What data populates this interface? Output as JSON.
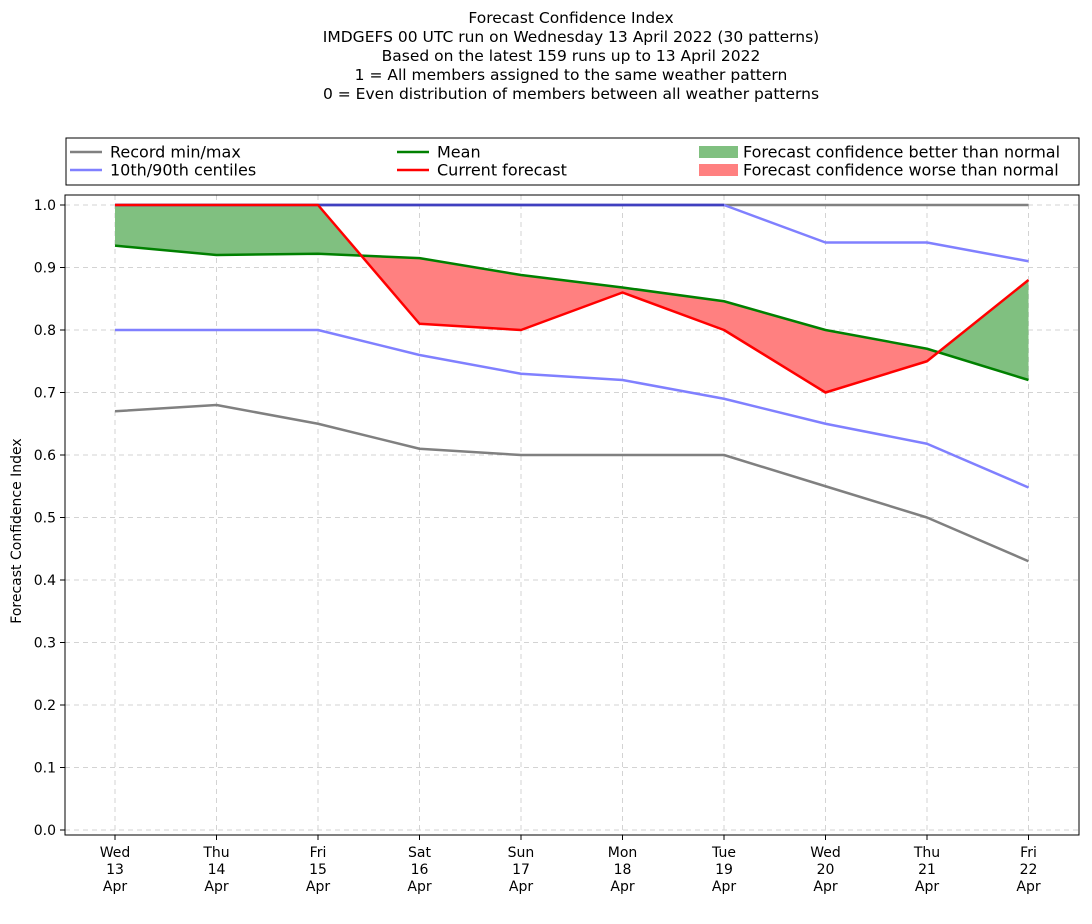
{
  "chart_data": {
    "type": "line",
    "title_lines": [
      "Forecast Confidence Index",
      "IMDGEFS 00 UTC run on Wednesday 13 April 2022 (30 patterns)",
      "Based on the latest 159 runs up to 13 April 2022",
      "1 = All members assigned to the same weather pattern",
      "0 = Even distribution of members between all weather patterns"
    ],
    "ylabel": "Forecast Confidence Index",
    "xlabel": "",
    "ylim": [
      0.0,
      1.0
    ],
    "yticks": [
      "0.0",
      "0.1",
      "0.2",
      "0.3",
      "0.4",
      "0.5",
      "0.6",
      "0.7",
      "0.8",
      "0.9",
      "1.0"
    ],
    "grid": true,
    "legend_placement": "top",
    "categories": [
      [
        "Wed",
        "13",
        "Apr"
      ],
      [
        "Thu",
        "14",
        "Apr"
      ],
      [
        "Fri",
        "15",
        "Apr"
      ],
      [
        "Sat",
        "16",
        "Apr"
      ],
      [
        "Sun",
        "17",
        "Apr"
      ],
      [
        "Mon",
        "18",
        "Apr"
      ],
      [
        "Tue",
        "19",
        "Apr"
      ],
      [
        "Wed",
        "20",
        "Apr"
      ],
      [
        "Thu",
        "21",
        "Apr"
      ],
      [
        "Fri",
        "22",
        "Apr"
      ]
    ],
    "series": {
      "record_min": [
        0.67,
        0.68,
        0.65,
        0.61,
        0.6,
        0.6,
        0.6,
        0.55,
        0.5,
        0.43
      ],
      "record_max": [
        1.0,
        1.0,
        1.0,
        1.0,
        1.0,
        1.0,
        1.0,
        1.0,
        1.0,
        1.0
      ],
      "centile_10": [
        0.8,
        0.8,
        0.8,
        0.76,
        0.73,
        0.72,
        0.69,
        0.65,
        0.618,
        0.548
      ],
      "centile_90": [
        1.0,
        1.0,
        1.0,
        1.0,
        1.0,
        1.0,
        1.0,
        0.94,
        0.94,
        0.91
      ],
      "mean": [
        0.935,
        0.92,
        0.922,
        0.915,
        0.888,
        0.868,
        0.846,
        0.8,
        0.77,
        0.72
      ],
      "current_forecast": [
        1.0,
        1.0,
        1.0,
        0.81,
        0.8,
        0.86,
        0.8,
        0.7,
        0.75,
        0.88
      ]
    },
    "legend": [
      {
        "label": "Record min/max",
        "kind": "line",
        "color": "#808080"
      },
      {
        "label": "Mean",
        "kind": "line",
        "color": "#008000"
      },
      {
        "label": "Forecast confidence better than normal",
        "kind": "patch",
        "color": "#80c080"
      },
      {
        "label": "10th/90th centiles",
        "kind": "line",
        "color": "#8080ff"
      },
      {
        "label": "Current forecast",
        "kind": "line",
        "color": "#ff0000"
      },
      {
        "label": "Forecast confidence worse than normal",
        "kind": "patch",
        "color": "#ff8080"
      }
    ],
    "colors": {
      "record": "#808080",
      "centile": "#8080ff",
      "mean": "#008000",
      "current": "#ff0000",
      "better_fill": "#80c080",
      "worse_fill": "#ff8080",
      "grid": "#d3d3d3",
      "max_overlap": "#4040c0"
    }
  }
}
